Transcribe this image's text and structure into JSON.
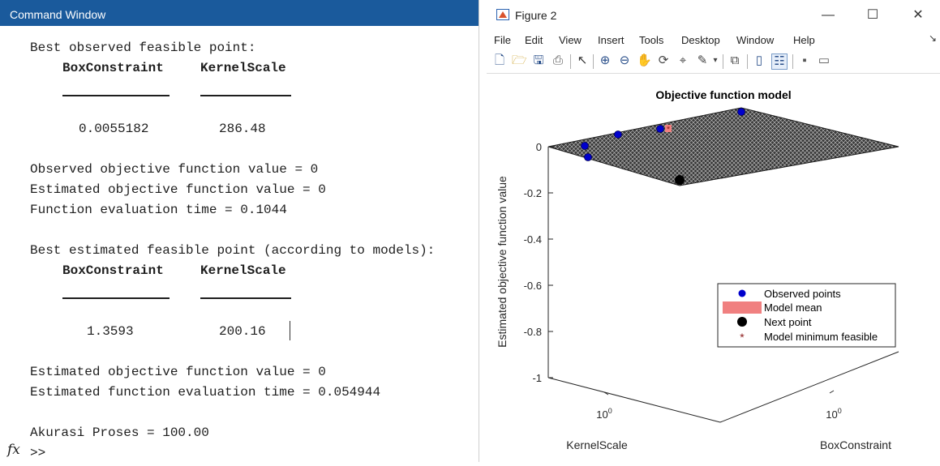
{
  "command_window": {
    "title": "Command Window",
    "lines": {
      "best_observed_header": "Best observed feasible point:",
      "col1_header": "BoxConstraint",
      "col2_header": "KernelScale",
      "obs_box": "0.0055182",
      "obs_kernel": "286.48",
      "obs_obj": "Observed objective function value = 0",
      "est_obj_1": "Estimated objective function value = 0",
      "eval_time": "Function evaluation time = 0.1044",
      "best_estimated_header": "Best estimated feasible point (according to models):",
      "col1_header_2": "BoxConstraint",
      "col2_header_2": "KernelScale",
      "est_box": "1.3593",
      "est_kernel": "200.16",
      "est_obj_2": "Estimated objective function value = 0",
      "est_eval_time": "Estimated function evaluation time = 0.054944",
      "accuracy": "Akurasi Proses = 100.00"
    },
    "fx_label": "fx",
    "prompt": ">>"
  },
  "figure": {
    "title": "Figure 2",
    "window_buttons": {
      "minimize": "—",
      "maximize": "☐",
      "close": "✕"
    },
    "menu": [
      "File",
      "Edit",
      "View",
      "Insert",
      "Tools",
      "Desktop",
      "Window",
      "Help"
    ],
    "menu_overflow": "↘",
    "toolbar_icons": [
      "new-figure-icon",
      "open-file-icon",
      "save-icon",
      "print-icon",
      "pointer-icon",
      "zoom-in-icon",
      "zoom-out-icon",
      "pan-icon",
      "rotate-3d-icon",
      "data-cursor-icon",
      "brush-icon",
      "brush-dropdown-icon",
      "link-plot-icon",
      "colorbar-icon",
      "legend-icon",
      "hide-plot-tools-icon",
      "show-plot-tools-icon"
    ]
  },
  "colors": {
    "title_bar": "#1a5a9c",
    "observed_points": "#0000cc",
    "model_mean": "#f08080",
    "next_point": "#000000",
    "model_min": "#8b1a1a"
  },
  "chart_data": {
    "type": "scatter",
    "title": "Objective function model",
    "xlabel": "KernelScale",
    "ylabel": "BoxConstraint",
    "zlabel": "Estimated objective function value",
    "x_scale": "log",
    "y_scale": "log",
    "x_tick_label": "10",
    "x_tick_exponent": "0",
    "y_tick_label": "10",
    "y_tick_exponent": "0",
    "zlim": [
      -1,
      0
    ],
    "z_ticks": [
      0,
      -0.2,
      -0.4,
      -0.6,
      -0.8,
      -1
    ],
    "z_tick_labels": [
      "0",
      "-0.2",
      "-0.4",
      "-0.6",
      "-0.8",
      "-1"
    ],
    "surface_value": 0,
    "legend_position": "inside lower-right",
    "legend": [
      {
        "name": "Observed points",
        "marker": "filled-circle",
        "color": "#0000cc"
      },
      {
        "name": "Model mean",
        "marker": "filled-rectangle",
        "color": "#f08080"
      },
      {
        "name": "Next point",
        "marker": "filled-circle",
        "color": "#000000"
      },
      {
        "name": "Model minimum feasible",
        "marker": "asterisk",
        "color": "#8b1a1a"
      }
    ]
  }
}
